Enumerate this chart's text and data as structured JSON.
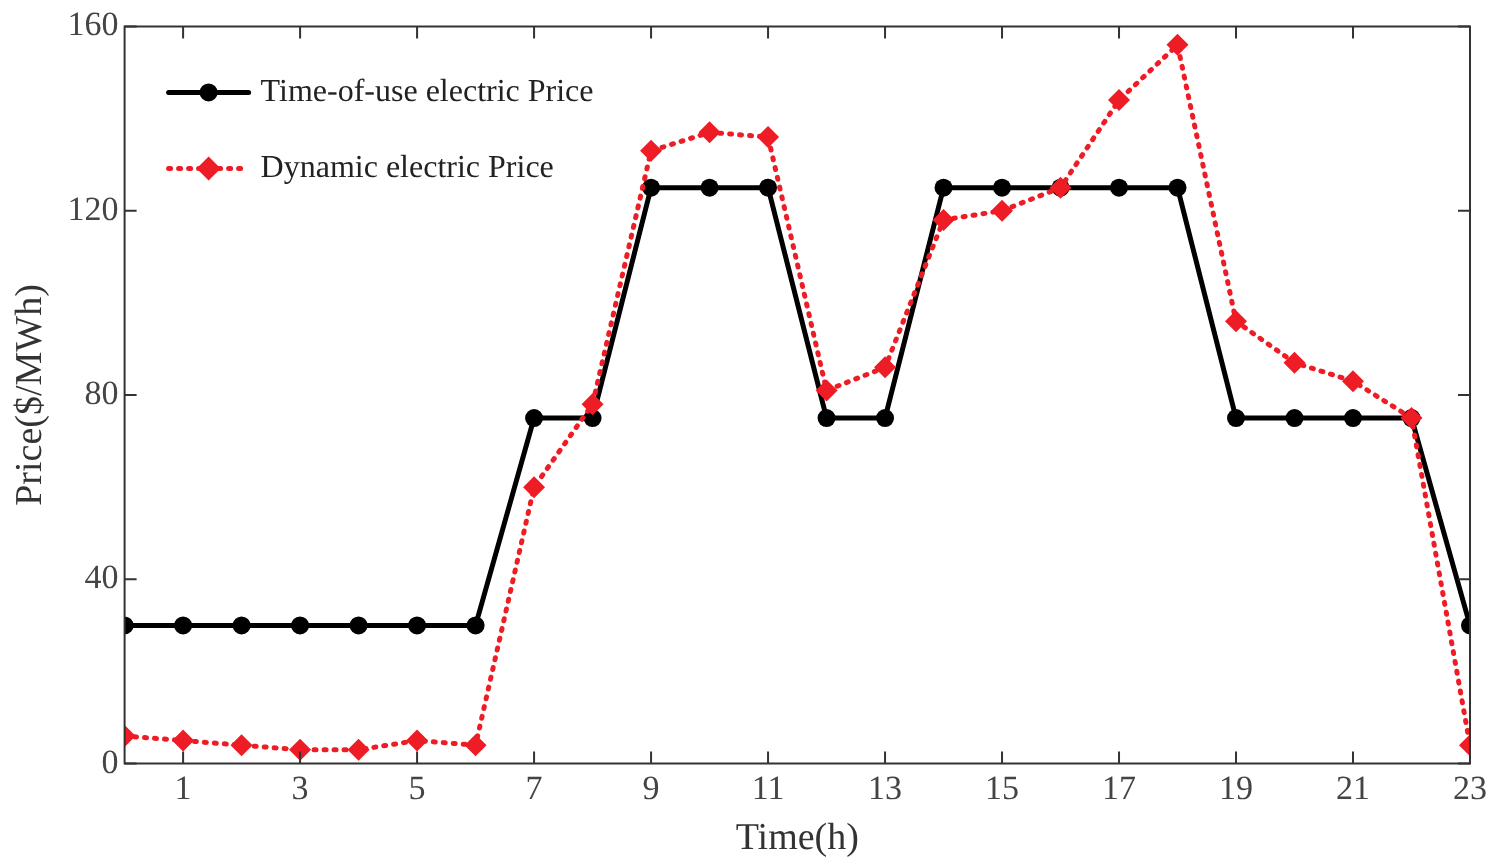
{
  "chart_data": {
    "type": "line",
    "xlabel": "Time(h)",
    "ylabel": "Price($/MWh)",
    "x": [
      0,
      1,
      2,
      3,
      4,
      5,
      6,
      7,
      8,
      9,
      10,
      11,
      12,
      13,
      14,
      15,
      16,
      17,
      18,
      19,
      20,
      21,
      22,
      23
    ],
    "series": [
      {
        "name": "Time-of-use electric Price",
        "color": "#000000",
        "marker": "circle",
        "line_style": "solid",
        "values": [
          30,
          30,
          30,
          30,
          30,
          30,
          30,
          75,
          75,
          125,
          125,
          125,
          75,
          75,
          125,
          125,
          125,
          125,
          125,
          75,
          75,
          75,
          75,
          30
        ]
      },
      {
        "name": "Dynamic electric Price",
        "color": "#ee1c25",
        "marker": "diamond",
        "line_style": "dotted",
        "values": [
          6,
          5,
          4,
          3,
          3,
          5,
          4,
          60,
          78,
          133,
          137,
          136,
          81,
          86,
          118,
          120,
          125,
          144,
          156,
          96,
          87,
          83,
          75,
          4
        ]
      }
    ],
    "xlim": [
      0,
      23
    ],
    "xticks": [
      1,
      3,
      5,
      7,
      9,
      11,
      13,
      15,
      17,
      19,
      21,
      23
    ],
    "ylim": [
      0,
      160
    ],
    "yticks": [
      0,
      40,
      80,
      120,
      160
    ],
    "legend": "top left"
  }
}
